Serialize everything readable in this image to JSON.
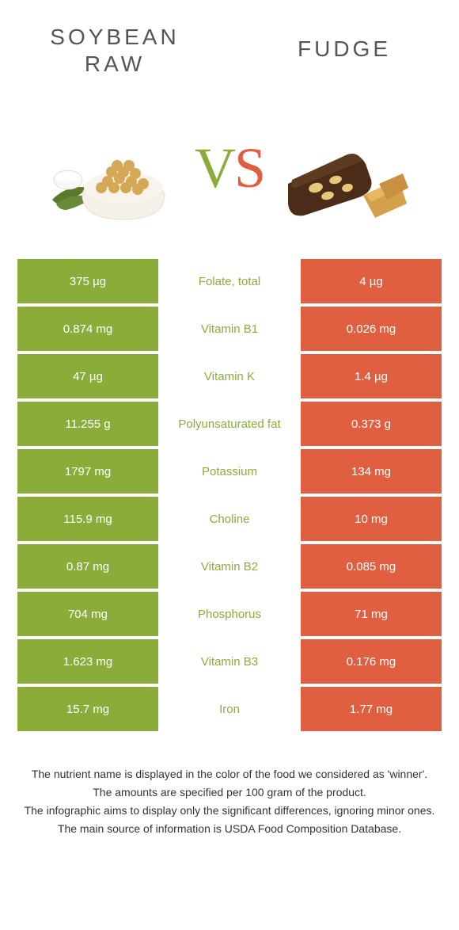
{
  "colors": {
    "left": "#8aad3a",
    "right": "#e15f41",
    "label_left_win": "#8aad3a",
    "label_right_win": "#e15f41",
    "header_text": "#555555",
    "footer_text": "#333333",
    "bg": "#ffffff"
  },
  "header": {
    "left": "SOYBEAN\nRAW",
    "right": "FUDGE"
  },
  "vs": {
    "v": "V",
    "s": "S"
  },
  "rows": [
    {
      "left": "375 µg",
      "label": "Folate, total",
      "right": "4 µg",
      "winner": "left"
    },
    {
      "left": "0.874 mg",
      "label": "Vitamin B1",
      "right": "0.026 mg",
      "winner": "left"
    },
    {
      "left": "47 µg",
      "label": "Vitamin K",
      "right": "1.4 µg",
      "winner": "left"
    },
    {
      "left": "11.255 g",
      "label": "Polyunsaturated fat",
      "right": "0.373 g",
      "winner": "left"
    },
    {
      "left": "1797 mg",
      "label": "Potassium",
      "right": "134 mg",
      "winner": "left"
    },
    {
      "left": "115.9 mg",
      "label": "Choline",
      "right": "10 mg",
      "winner": "left"
    },
    {
      "left": "0.87 mg",
      "label": "Vitamin B2",
      "right": "0.085 mg",
      "winner": "left"
    },
    {
      "left": "704 mg",
      "label": "Phosphorus",
      "right": "71 mg",
      "winner": "left"
    },
    {
      "left": "1.623 mg",
      "label": "Vitamin B3",
      "right": "0.176 mg",
      "winner": "left"
    },
    {
      "left": "15.7 mg",
      "label": "Iron",
      "right": "1.77 mg",
      "winner": "left"
    }
  ],
  "footer": {
    "l1": "The nutrient name is displayed in the color of the food we considered as 'winner'.",
    "l2": "The amounts are specified per 100 gram of the product.",
    "l3": "The infographic aims to display only the significant differences, ignoring minor ones.",
    "l4": "The main source of information is USDA Food Composition Database."
  }
}
